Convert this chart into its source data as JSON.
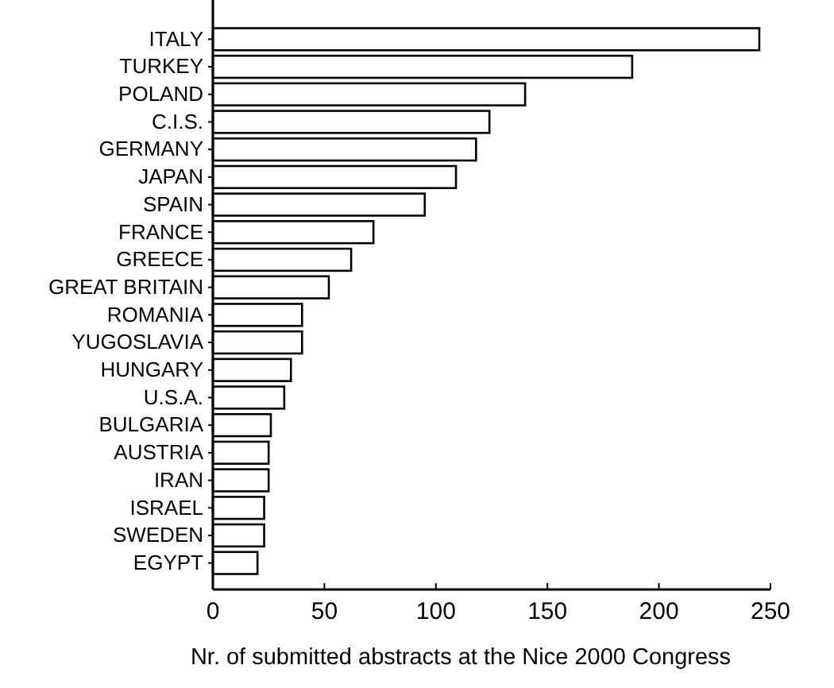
{
  "chart_data": {
    "type": "bar",
    "orientation": "horizontal",
    "xlabel": "Nr. of submitted abstracts at the Nice 2000 Congress",
    "categories": [
      "ITALY",
      "TURKEY",
      "POLAND",
      "C.I.S.",
      "GERMANY",
      "JAPAN",
      "SPAIN",
      "FRANCE",
      "GREECE",
      "GREAT BRITAIN",
      "ROMANIA",
      "YUGOSLAVIA",
      "HUNGARY",
      "U.S.A.",
      "BULGARIA",
      "AUSTRIA",
      "IRAN",
      "ISRAEL",
      "SWEDEN",
      "EGYPT"
    ],
    "values": [
      245,
      188,
      140,
      124,
      118,
      109,
      95,
      72,
      62,
      52,
      40,
      40,
      35,
      32,
      26,
      25,
      25,
      23,
      23,
      20
    ],
    "color": "#ffffff",
    "xlim": [
      0,
      250
    ],
    "xticks": [
      0,
      50,
      100,
      150,
      200,
      250
    ],
    "grid": false
  }
}
